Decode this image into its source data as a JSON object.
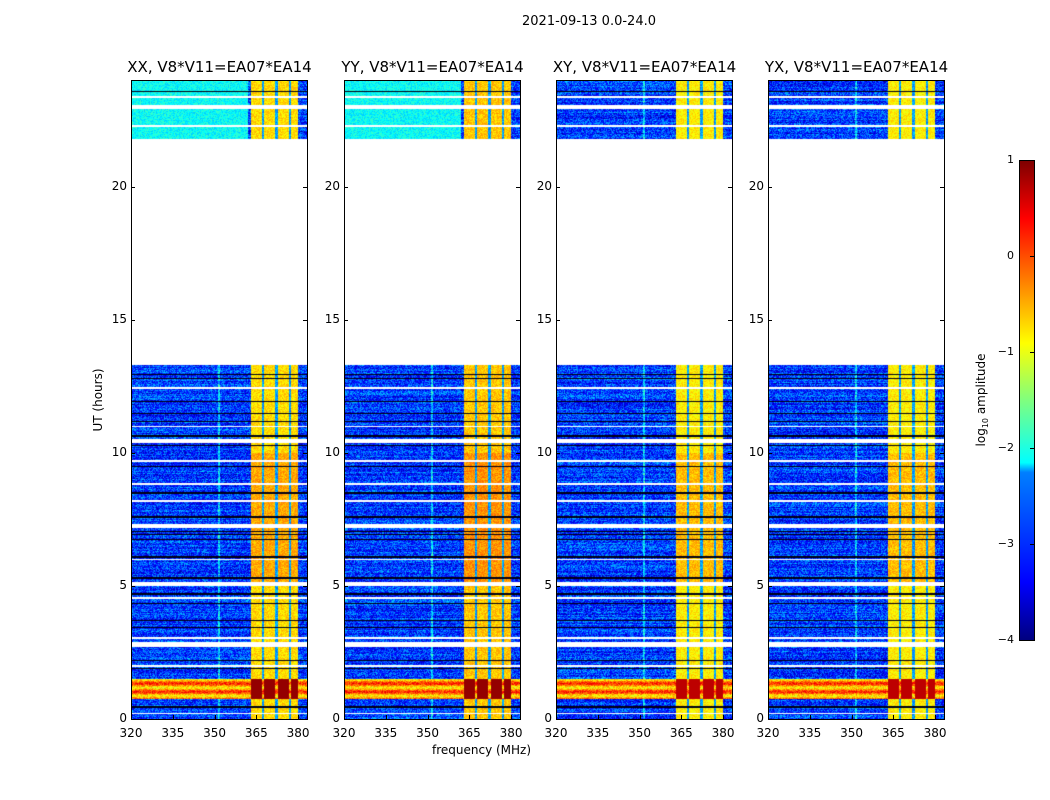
{
  "chart_data": {
    "type": "heatmap",
    "title": "2021-09-13 0.0-24.0",
    "xlabel": "frequency (MHz)",
    "ylabel": "UT (hours)",
    "xlim": [
      320,
      383.2
    ],
    "ylim": [
      0,
      24
    ],
    "xticks": [
      "320",
      "335",
      "350",
      "365",
      "380"
    ],
    "xtick_values": [
      320,
      335,
      350,
      365,
      380
    ],
    "yticks": [
      "0",
      "5",
      "10",
      "15",
      "20"
    ],
    "ytick_values": [
      0,
      5,
      10,
      15,
      20
    ],
    "panels": [
      {
        "title": "XX, V8*V11=EA07*EA14",
        "band_level": -0.7,
        "rfi_level": 0.9
      },
      {
        "title": "YY, V8*V11=EA07*EA14",
        "band_level": -0.6,
        "rfi_level": 0.9
      },
      {
        "title": "XY, V8*V11=EA07*EA14",
        "band_level": -0.8,
        "rfi_level": 0.7
      },
      {
        "title": "YX, V8*V11=EA07*EA14",
        "band_level": -0.8,
        "rfi_level": 0.7
      }
    ],
    "data_segments_hours": [
      [
        0,
        2.7
      ],
      [
        2.9,
        5.0
      ],
      [
        5.15,
        7.2
      ],
      [
        7.35,
        10.4
      ],
      [
        10.55,
        13.3
      ],
      [
        21.8,
        22.95
      ],
      [
        23.1,
        24
      ]
    ],
    "background_level": -3.1,
    "rfi_band_mhz": [
      363,
      380
    ],
    "rfi_band_gaps_mhz": [
      367.3,
      372.2,
      377.1
    ],
    "strong_rfi_hours": [
      0.75,
      1.5
    ],
    "colorbar": {
      "label": "log10 amplitude",
      "label_base": "log",
      "label_sub": "10",
      "label_rest": " amplitude",
      "range": [
        -4,
        1
      ],
      "ticks": [
        "1",
        "0",
        "−1",
        "−2",
        "−3",
        "−4"
      ],
      "tick_values": [
        1,
        0,
        -1,
        -2,
        -3,
        -4
      ],
      "cmap": "jet"
    }
  }
}
